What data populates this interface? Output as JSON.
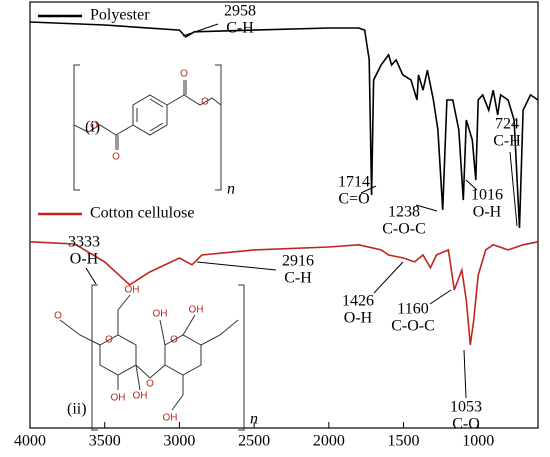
{
  "chart_data": {
    "type": "line",
    "xlim": [
      4000,
      600
    ],
    "xticks": [
      4000,
      3500,
      3000,
      2500,
      2000,
      1500,
      1000
    ],
    "ylim": [
      0,
      100
    ],
    "legend": "top-left",
    "series": [
      {
        "name": "Polyester",
        "color": "#000000",
        "x": [
          4000,
          3500,
          3000,
          2958,
          2900,
          2500,
          2000,
          1800,
          1760,
          1730,
          1714,
          1700,
          1650,
          1600,
          1580,
          1550,
          1505,
          1450,
          1410,
          1400,
          1370,
          1340,
          1300,
          1270,
          1238,
          1210,
          1170,
          1130,
          1100,
          1080,
          1040,
          1016,
          1000,
          970,
          930,
          900,
          870,
          850,
          800,
          760,
          724,
          700,
          650,
          600
        ],
        "values": [
          95.3,
          94.6,
          93.4,
          91.8,
          93.0,
          93.4,
          93.9,
          93.9,
          93.4,
          86.4,
          54.7,
          81.7,
          85.2,
          87.6,
          85.2,
          86.4,
          82.9,
          81.7,
          77.0,
          82.9,
          79.3,
          84.0,
          77.0,
          70.0,
          51.2,
          77.0,
          77.0,
          70.0,
          53.5,
          72.3,
          67.6,
          58.2,
          77.0,
          78.2,
          74.6,
          79.3,
          73.5,
          78.2,
          77.0,
          72.3,
          47.0,
          74.6,
          78.2,
          77.0
        ]
      },
      {
        "name": "Cotton cellulose",
        "color": "#c0261e",
        "x": [
          4000,
          3700,
          3500,
          3333,
          3200,
          3000,
          2916,
          2850,
          2500,
          2000,
          1800,
          1650,
          1600,
          1500,
          1426,
          1370,
          1320,
          1280,
          1200,
          1160,
          1110,
          1080,
          1053,
          1030,
          1000,
          950,
          900,
          800,
          700,
          600
        ],
        "values": [
          43.7,
          43.2,
          39.0,
          33.6,
          36.6,
          39.9,
          38.3,
          40.6,
          41.8,
          42.5,
          43.0,
          41.8,
          40.6,
          39.9,
          39.0,
          40.6,
          37.6,
          40.6,
          41.8,
          32.4,
          37.1,
          30.0,
          19.5,
          25.4,
          35.9,
          41.8,
          43.0,
          41.8,
          43.0,
          43.7
        ]
      }
    ],
    "annotations": [
      {
        "text": [
          "2958",
          "C-H"
        ]
      },
      {
        "text": [
          "1714",
          "C=O"
        ]
      },
      {
        "text": [
          "1238",
          "C-O-C"
        ]
      },
      {
        "text": [
          "1016",
          "O-H"
        ]
      },
      {
        "text": [
          "724",
          "C-H"
        ]
      },
      {
        "text": [
          "3333",
          "O-H"
        ]
      },
      {
        "text": [
          "2916",
          "C-H"
        ]
      },
      {
        "text": [
          "1426",
          "O-H"
        ]
      },
      {
        "text": [
          "1160",
          "C-O-C"
        ]
      },
      {
        "text": [
          "1053",
          "C-O"
        ]
      }
    ],
    "structures": [
      {
        "label": "(i)",
        "subscript": "n",
        "atoms": [
          "O",
          "O",
          "O",
          "O"
        ]
      },
      {
        "label": "(ii)",
        "subscript": "n",
        "atoms": [
          "OH",
          "OH",
          "OH",
          "O",
          "OH",
          "OH",
          "OH",
          "O",
          "O",
          "O"
        ]
      }
    ]
  }
}
